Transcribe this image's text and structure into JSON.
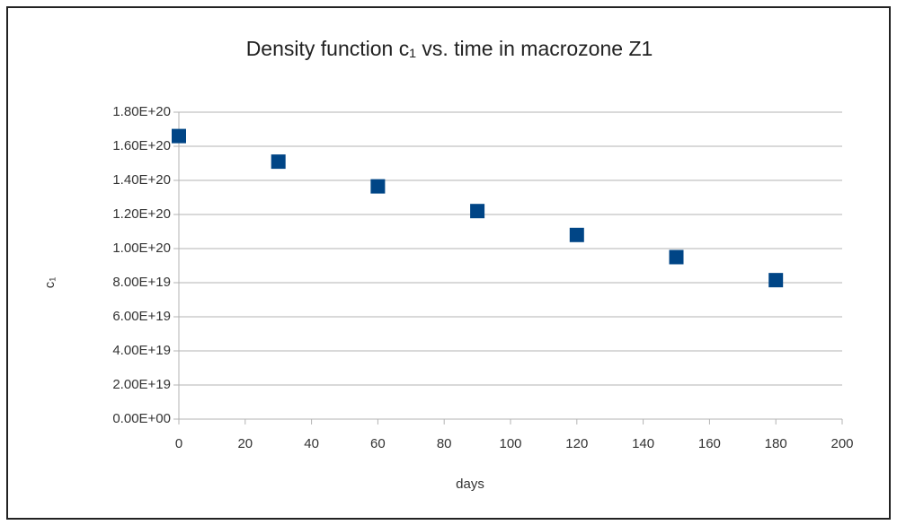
{
  "chart_data": {
    "type": "scatter",
    "title": "Density function c₁  vs. time in macrozone Z1",
    "x_label": "days",
    "y_label": "c₁",
    "series": [
      {
        "name": "c₁",
        "color": "#004586",
        "x": [
          0,
          30,
          60,
          90,
          120,
          150,
          180
        ],
        "values": [
          1.66e+20,
          1.51e+20,
          1.365e+20,
          1.22e+20,
          1.08e+20,
          9.5e+19,
          8.15e+19
        ]
      }
    ],
    "xlim": [
      0,
      200
    ],
    "xticks": [
      0,
      20,
      40,
      60,
      80,
      100,
      120,
      140,
      160,
      180,
      200
    ],
    "ylim": [
      0,
      1.8e+20
    ],
    "yticks": [
      {
        "value": 0,
        "label": "0.00E+00"
      },
      {
        "value": 2e+19,
        "label": "2.00E+19"
      },
      {
        "value": 4e+19,
        "label": "4.00E+19"
      },
      {
        "value": 6e+19,
        "label": "6.00E+19"
      },
      {
        "value": 8e+19,
        "label": "8.00E+19"
      },
      {
        "value": 1e+20,
        "label": "1.00E+20"
      },
      {
        "value": 1.2e+20,
        "label": "1.20E+20"
      },
      {
        "value": 1.4e+20,
        "label": "1.40E+20"
      },
      {
        "value": 1.6e+20,
        "label": "1.60E+20"
      },
      {
        "value": 1.8e+20,
        "label": "1.80E+20"
      }
    ],
    "grid": true,
    "legend": false
  }
}
